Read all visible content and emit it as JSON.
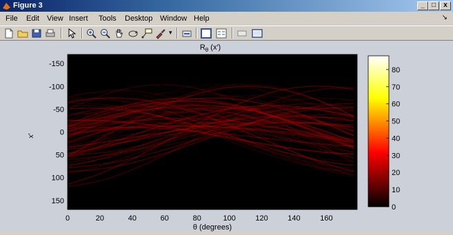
{
  "window": {
    "title": "Figure 3",
    "controls": [
      "_",
      "□",
      "x"
    ]
  },
  "menu": [
    "File",
    "Edit",
    "View",
    "Insert",
    "Tools",
    "Desktop",
    "Window",
    "Help"
  ],
  "toolbar_icons": [
    "new-file-icon",
    "open-folder-icon",
    "save-icon",
    "print-icon",
    "pointer-icon",
    "zoom-in-icon",
    "zoom-out-icon",
    "pan-hand-icon",
    "rotate-3d-icon",
    "data-cursor-icon",
    "brush-icon",
    "link-icon",
    "colorbar-toggle-icon",
    "legend-toggle-icon",
    "hide-plot-tools-icon",
    "show-plot-tools-icon"
  ],
  "chart_data": {
    "type": "heatmap",
    "title_main": "R",
    "title_sub": "θ",
    "title_tail": " (x′)",
    "xlabel": "θ (degrees)",
    "ylabel": "x′",
    "xlim": [
      0,
      179
    ],
    "ylim": [
      -170,
      170
    ],
    "y_reversed": true,
    "x_ticks": [
      0,
      20,
      40,
      60,
      80,
      100,
      120,
      140,
      160
    ],
    "y_ticks": [
      -150,
      -100,
      -50,
      0,
      50,
      100,
      150
    ],
    "colormap": "hot",
    "colorbar_ticks": [
      0,
      10,
      20,
      30,
      40,
      50,
      60,
      70,
      80
    ],
    "colorbar_range": [
      0,
      88
    ]
  },
  "colors": {
    "plot_background": "#000000",
    "figure_background": "#ccd0d8",
    "sinogram_stroke": "#b00000"
  }
}
